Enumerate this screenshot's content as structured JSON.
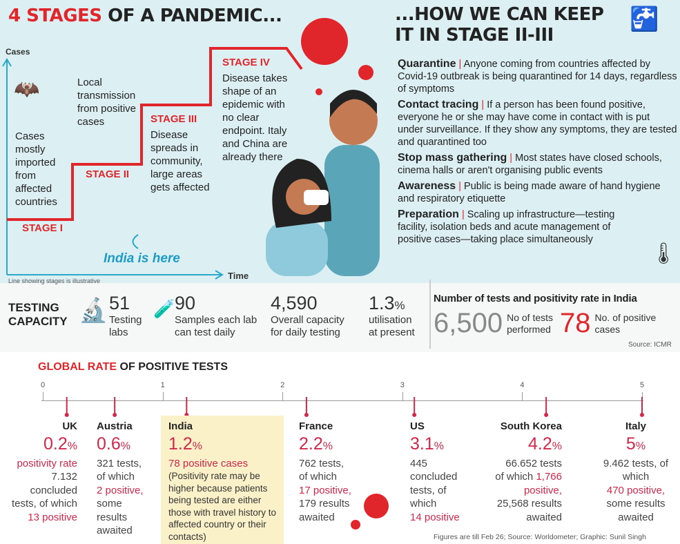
{
  "left_title": {
    "highlight": "4 STAGES",
    "rest": " OF A PANDEMIC..."
  },
  "right_title": {
    "line1": "...HOW WE CAN KEEP",
    "line2": "IT IN STAGE II-III"
  },
  "axes": {
    "y": "Cases",
    "x": "Time"
  },
  "stages": [
    {
      "label": "STAGE I",
      "text": "Cases mostly imported from affected countries"
    },
    {
      "label": "STAGE II",
      "text": "Local transmission from positive cases"
    },
    {
      "label": "STAGE III",
      "text": "Disease spreads in community, large areas gets affected"
    },
    {
      "label": "STAGE IV",
      "text": "Disease takes shape of an epidemic with no clear endpoint. Italy and China are already there"
    }
  ],
  "india_here": "India is here",
  "illustrative_note": "Line showing stages is illustrative",
  "measures": [
    {
      "title": "Quarantine",
      "text": "Anyone coming from countries affected by Covid-19 outbreak is being quarantined for 14 days, regardless of symptoms"
    },
    {
      "title": "Contact tracing",
      "text": "If a person has been found positive, everyone he or she may have come in contact with is put under surveillance. If they show any symptoms, they are tested and quarantined too"
    },
    {
      "title": "Stop mass gathering",
      "text": "Most states have closed schools, cinema halls or aren't organising public events"
    },
    {
      "title": "Awareness",
      "text": "Public is being made aware of hand hygiene and respiratory etiquette"
    },
    {
      "title": "Preparation",
      "text": "Scaling up infrastructure—testing facility, isolation beds and acute management of positive cases—taking place simultaneously"
    }
  ],
  "testing": {
    "title1": "TESTING",
    "title2": "CAPACITY",
    "items": [
      {
        "value": "51",
        "l1": "Testing",
        "l2": "labs"
      },
      {
        "value": "90",
        "l1": "Samples each lab",
        "l2": "can test daily"
      },
      {
        "value": "4,590",
        "l1": "Overall capacity",
        "l2": "for daily testing"
      },
      {
        "value": "1.3",
        "unit": "%",
        "l1": "utilisation",
        "l2": "at present"
      }
    ]
  },
  "india_tests": {
    "title": "Number of tests and positivity rate in India",
    "tests": "6,500",
    "tests_l1": "No of tests",
    "tests_l2": "performed",
    "positive": "78",
    "pos_l1": "No. of positive",
    "pos_l2": "cases",
    "source": "Source: ICMR"
  },
  "global": {
    "title_highlight": "GLOBAL RATE",
    "title_rest": " OF POSITIVE TESTS",
    "axis_ticks": [
      "0",
      "1",
      "2",
      "3",
      "4",
      "5"
    ],
    "countries": [
      {
        "name": "UK",
        "rate": 0.2,
        "rate_label": "0.2",
        "l1": "positivity rate",
        "l2": "7.132",
        "l3": "concluded",
        "l4": "tests, of which",
        "l5": "13 positive"
      },
      {
        "name": "Austria",
        "rate": 0.6,
        "rate_label": "0.6",
        "l1": "321 tests,",
        "l2": "of which",
        "l3": "2 positive,",
        "l4": "some",
        "l5": "results",
        "l6": "awaited"
      },
      {
        "name": "India",
        "rate": 1.2,
        "rate_label": "1.2",
        "l1": "78 positive cases",
        "l2": "(Positivity rate may be higher because patients being tested are either those with travel history to affected country or their contacts)"
      },
      {
        "name": "France",
        "rate": 2.2,
        "rate_label": "2.2",
        "l1": "762 tests,",
        "l2": "of which",
        "l3": "17 positive,",
        "l4": "179 results",
        "l5": "awaited"
      },
      {
        "name": "US",
        "rate": 3.1,
        "rate_label": "3.1",
        "l1": "445",
        "l2": "concluded",
        "l3": "tests, of",
        "l4": "which",
        "l5": "14 positive"
      },
      {
        "name": "South Korea",
        "rate": 4.2,
        "rate_label": "4.2",
        "l1": "66.652 tests",
        "l2": "of which ",
        "l2b": "1,766",
        "l3": "positive,",
        "l4": "25,568 results",
        "l5": "awaited"
      },
      {
        "name": "Italy",
        "rate": 5,
        "rate_label": "5",
        "l1": "9.462 tests, of",
        "l2": "which",
        "l3": "470 positive,",
        "l4": "some results",
        "l5": "awaited"
      }
    ],
    "pct": "%",
    "footer": "Figures are till Feb 26; Source: Worldometer; Graphic: Sunil Singh"
  },
  "colors": {
    "accent": "#e0262b",
    "pink": "#d0274a",
    "bg_top": "#dcf0f3",
    "axis": "#2aa8c9",
    "highlight_box": "#fbf1c9"
  }
}
